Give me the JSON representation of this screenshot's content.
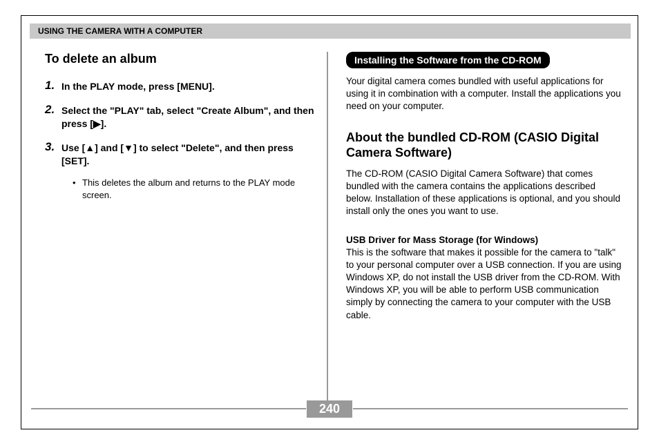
{
  "header": "USING THE CAMERA WITH A COMPUTER",
  "left": {
    "title": "To delete an album",
    "steps": [
      {
        "num": "1.",
        "text": "In the PLAY mode, press [MENU]."
      },
      {
        "num": "2.",
        "text": "Select the \"PLAY\" tab, select \"Create Album\", and then press [▶]."
      },
      {
        "num": "3.",
        "text": "Use [▲] and [▼] to select \"Delete\", and then press [SET]."
      }
    ],
    "bullet": "This deletes the album and returns to the PLAY mode screen."
  },
  "right": {
    "pill": "Installing the Software from the CD-ROM",
    "intro": "Your digital camera comes bundled with useful applications for using it in combination with a computer. Install the applications you need on your computer.",
    "title": "About the bundled CD-ROM (CASIO Digital Camera Software)",
    "body1": "The CD-ROM (CASIO Digital Camera Software) that comes bundled with the camera contains the applications described below. Installation of these applications is optional, and you should install only the ones you want to use.",
    "subhead": "USB Driver for Mass Storage (for Windows)",
    "body2": "This is the software that makes it possible for the camera to \"talk\" to your personal computer over a USB connection. If you are using Windows XP, do not install the USB driver from the CD-ROM. With Windows XP, you will be able to perform USB communication simply by connecting the camera to your computer with the USB cable."
  },
  "pageNumber": "240",
  "colors": {
    "headerBg": "#c8c8c8",
    "divider": "#999999",
    "pillBg": "#000000",
    "pillText": "#ffffff",
    "pageNumBg": "#999999"
  }
}
